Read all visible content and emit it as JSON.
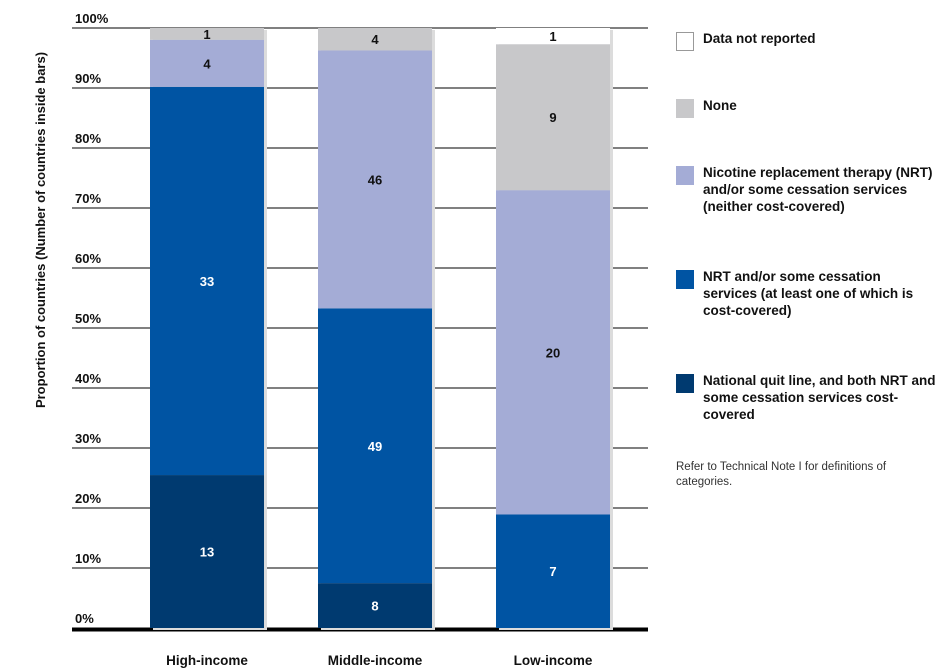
{
  "chart_data": {
    "type": "bar",
    "stacked": true,
    "ylabel": "Proportion of countries (Number of countries inside bars)",
    "ylim": [
      0,
      100
    ],
    "yticks": [
      "0%",
      "10%",
      "20%",
      "30%",
      "40%",
      "50%",
      "60%",
      "70%",
      "80%",
      "90%",
      "100%"
    ],
    "categories": [
      "High-income",
      "Middle-income",
      "Low-income"
    ],
    "series": [
      {
        "name": "National quit line, and both NRT and some cessation services cost-covered",
        "color": "#003a70",
        "counts": [
          13,
          8,
          0
        ]
      },
      {
        "name": "NRT and/or some cessation services (at least one of which is cost-covered)",
        "color": "#0054a3",
        "counts": [
          33,
          49,
          7
        ]
      },
      {
        "name": "Nicotine replacement therapy (NRT) and/or some cessation services (neither cost-covered)",
        "color": "#a4acd6",
        "counts": [
          4,
          46,
          20
        ]
      },
      {
        "name": "None",
        "color": "#c8c8ca",
        "counts": [
          1,
          4,
          9
        ]
      },
      {
        "name": "Data not reported",
        "color": "#ffffff",
        "counts": [
          0,
          0,
          1
        ]
      }
    ],
    "grid": true,
    "legend_position": "right"
  },
  "legend": [
    {
      "label": "Data not reported",
      "color": "#ffffff"
    },
    {
      "label": "None",
      "color": "#c8c8ca"
    },
    {
      "label": "Nicotine replacement therapy (NRT) and/or some cessation services (neither cost-covered)",
      "color": "#a4acd6"
    },
    {
      "label": "NRT and/or some cessation services (at least one of which is cost-covered)",
      "color": "#0054a3"
    },
    {
      "label": "National quit line, and both NRT and some cessation services cost-covered",
      "color": "#003a70"
    }
  ],
  "note": "Refer to Technical Note I for definitions of categories."
}
